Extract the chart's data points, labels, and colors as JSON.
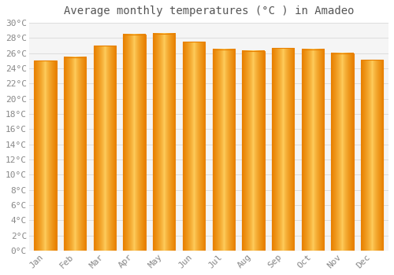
{
  "title": "Average monthly temperatures (°C ) in Amadeo",
  "months": [
    "Jan",
    "Feb",
    "Mar",
    "Apr",
    "May",
    "Jun",
    "Jul",
    "Aug",
    "Sep",
    "Oct",
    "Nov",
    "Dec"
  ],
  "values": [
    25.0,
    25.5,
    27.0,
    28.5,
    28.6,
    27.5,
    26.5,
    26.3,
    26.7,
    26.5,
    26.0,
    25.1
  ],
  "bar_color_edge": "#E88000",
  "bar_color_center": "#FFD060",
  "background_color": "#FFFFFF",
  "plot_bg_color": "#F5F5F5",
  "grid_color": "#DDDDDD",
  "text_color": "#888888",
  "title_color": "#555555",
  "ylim": [
    0,
    30
  ],
  "ytick_step": 2,
  "title_fontsize": 10,
  "tick_fontsize": 8,
  "font_family": "monospace"
}
